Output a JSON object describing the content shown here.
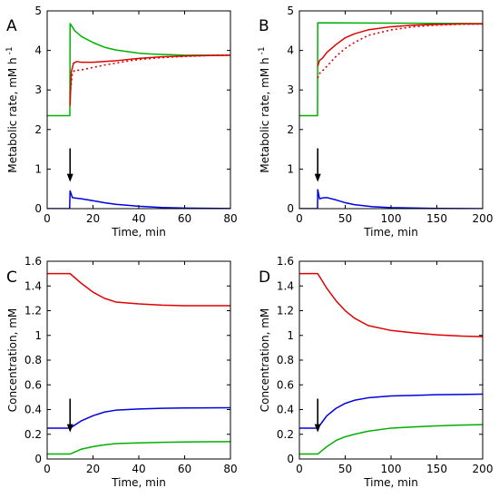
{
  "chart_data": [
    {
      "type": "line",
      "panel_label": "A",
      "xlabel": "Time, min",
      "ylabel": "Metabolic rate, mM h",
      "ylabel_sup": "-1",
      "xlim": [
        0,
        80
      ],
      "ylim": [
        0,
        5
      ],
      "xticks": [
        0,
        20,
        40,
        60,
        80
      ],
      "yticks": [
        0,
        1,
        2,
        3,
        4,
        5
      ],
      "grid": false,
      "arrow_at_x": 10,
      "series": [
        {
          "color": "#00b000",
          "dash": false,
          "x": [
            0,
            9.9,
            10,
            12,
            15,
            20,
            25,
            30,
            35,
            40,
            45,
            50,
            55,
            60,
            70,
            80
          ],
          "y": [
            2.35,
            2.35,
            4.68,
            4.5,
            4.35,
            4.2,
            4.08,
            4.01,
            3.97,
            3.93,
            3.91,
            3.9,
            3.89,
            3.88,
            3.88,
            3.88
          ]
        },
        {
          "color": "#e00000",
          "dash": false,
          "x": [
            10,
            10.5,
            11.5,
            13,
            15,
            20,
            25,
            30,
            40,
            50,
            60,
            70,
            80
          ],
          "y": [
            2.6,
            3.45,
            3.68,
            3.72,
            3.7,
            3.7,
            3.72,
            3.74,
            3.8,
            3.84,
            3.86,
            3.87,
            3.88
          ]
        },
        {
          "color": "#e00000",
          "dash": true,
          "x": [
            10,
            11,
            12,
            14,
            16,
            20,
            25,
            30,
            35,
            40,
            50,
            60,
            70,
            80
          ],
          "y": [
            2.9,
            3.42,
            3.5,
            3.5,
            3.52,
            3.57,
            3.63,
            3.68,
            3.73,
            3.77,
            3.82,
            3.85,
            3.87,
            3.88
          ]
        },
        {
          "color": "#0000e0",
          "dash": false,
          "x": [
            0,
            9.8,
            10,
            11,
            12,
            15,
            20,
            25,
            30,
            40,
            50,
            60,
            70,
            80
          ],
          "y": [
            0,
            0,
            0.45,
            0.28,
            0.27,
            0.25,
            0.2,
            0.15,
            0.11,
            0.06,
            0.03,
            0.015,
            0.008,
            0.004
          ]
        }
      ]
    },
    {
      "type": "line",
      "panel_label": "B",
      "xlabel": "Time, min",
      "ylabel": "Metabolic rate, mM h",
      "ylabel_sup": "-1",
      "xlim": [
        0,
        200
      ],
      "ylim": [
        0,
        5
      ],
      "xticks": [
        0,
        50,
        100,
        150,
        200
      ],
      "yticks": [
        0,
        1,
        2,
        3,
        4,
        5
      ],
      "grid": false,
      "arrow_at_x": 20,
      "series": [
        {
          "color": "#00b000",
          "dash": false,
          "x": [
            0,
            19.8,
            20,
            200
          ],
          "y": [
            2.35,
            2.35,
            4.7,
            4.68
          ]
        },
        {
          "color": "#e00000",
          "dash": false,
          "x": [
            20,
            22,
            25,
            30,
            40,
            50,
            60,
            75,
            100,
            125,
            150,
            175,
            200
          ],
          "y": [
            3.6,
            3.75,
            3.8,
            3.95,
            4.15,
            4.32,
            4.42,
            4.52,
            4.6,
            4.64,
            4.66,
            4.67,
            4.67
          ]
        },
        {
          "color": "#e00000",
          "dash": true,
          "x": [
            20,
            22,
            25,
            30,
            40,
            50,
            60,
            75,
            100,
            125,
            150,
            175,
            200
          ],
          "y": [
            3.3,
            3.42,
            3.48,
            3.6,
            3.85,
            4.05,
            4.2,
            4.38,
            4.52,
            4.6,
            4.64,
            4.66,
            4.67
          ]
        },
        {
          "color": "#0000e0",
          "dash": false,
          "x": [
            0,
            19.8,
            20,
            22,
            25,
            30,
            40,
            50,
            60,
            80,
            100,
            150,
            200
          ],
          "y": [
            0,
            0,
            0.48,
            0.25,
            0.27,
            0.28,
            0.22,
            0.15,
            0.1,
            0.05,
            0.025,
            0.005,
            0.001
          ]
        }
      ]
    },
    {
      "type": "line",
      "panel_label": "C",
      "xlabel": "Time, min",
      "ylabel": "Concentration, mM",
      "xlim": [
        0,
        80
      ],
      "ylim": [
        0,
        1.6
      ],
      "xticks": [
        0,
        20,
        40,
        60,
        80
      ],
      "yticks": [
        0,
        0.2,
        0.4,
        0.6,
        0.8,
        1,
        1.2,
        1.4,
        1.6
      ],
      "ytick_labels": [
        "0",
        "0.2",
        "0.4",
        "0.6",
        "0.8",
        "1",
        "1.2",
        "1.4",
        "1.6"
      ],
      "grid": false,
      "arrow_at_x": 10,
      "series": [
        {
          "color": "#e00000",
          "dash": false,
          "x": [
            0,
            10,
            15,
            20,
            25,
            30,
            40,
            50,
            60,
            70,
            80
          ],
          "y": [
            1.5,
            1.5,
            1.42,
            1.35,
            1.3,
            1.27,
            1.255,
            1.245,
            1.24,
            1.24,
            1.24
          ]
        },
        {
          "color": "#0000e0",
          "dash": false,
          "x": [
            0,
            10,
            15,
            20,
            25,
            30,
            40,
            50,
            60,
            70,
            80
          ],
          "y": [
            0.25,
            0.25,
            0.31,
            0.35,
            0.38,
            0.395,
            0.405,
            0.41,
            0.413,
            0.414,
            0.415
          ]
        },
        {
          "color": "#00b000",
          "dash": false,
          "x": [
            0,
            10,
            15,
            20,
            25,
            30,
            40,
            50,
            60,
            70,
            80
          ],
          "y": [
            0.04,
            0.04,
            0.08,
            0.1,
            0.115,
            0.125,
            0.13,
            0.135,
            0.138,
            0.139,
            0.14
          ]
        }
      ]
    },
    {
      "type": "line",
      "panel_label": "D",
      "xlabel": "Time, min",
      "ylabel": "Concentration, mM",
      "xlim": [
        0,
        200
      ],
      "ylim": [
        0,
        1.6
      ],
      "xticks": [
        0,
        50,
        100,
        150,
        200
      ],
      "yticks": [
        0,
        0.2,
        0.4,
        0.6,
        0.8,
        1,
        1.2,
        1.4,
        1.6
      ],
      "ytick_labels": [
        "0",
        "0.2",
        "0.4",
        "0.6",
        "0.8",
        "1",
        "1.2",
        "1.4",
        "1.6"
      ],
      "grid": false,
      "arrow_at_x": 20,
      "series": [
        {
          "color": "#e00000",
          "dash": false,
          "x": [
            0,
            20,
            30,
            40,
            50,
            60,
            75,
            100,
            125,
            150,
            175,
            200
          ],
          "y": [
            1.5,
            1.5,
            1.38,
            1.28,
            1.2,
            1.14,
            1.08,
            1.04,
            1.02,
            1.005,
            0.995,
            0.99
          ]
        },
        {
          "color": "#0000e0",
          "dash": false,
          "x": [
            0,
            20,
            25,
            30,
            40,
            50,
            60,
            75,
            100,
            125,
            150,
            175,
            200
          ],
          "y": [
            0.25,
            0.25,
            0.3,
            0.35,
            0.41,
            0.45,
            0.475,
            0.495,
            0.51,
            0.515,
            0.52,
            0.522,
            0.525
          ]
        },
        {
          "color": "#00b000",
          "dash": false,
          "x": [
            0,
            20,
            25,
            30,
            40,
            50,
            60,
            75,
            100,
            125,
            150,
            175,
            200
          ],
          "y": [
            0.04,
            0.04,
            0.07,
            0.1,
            0.15,
            0.18,
            0.2,
            0.225,
            0.25,
            0.26,
            0.268,
            0.274,
            0.278
          ]
        }
      ]
    }
  ]
}
